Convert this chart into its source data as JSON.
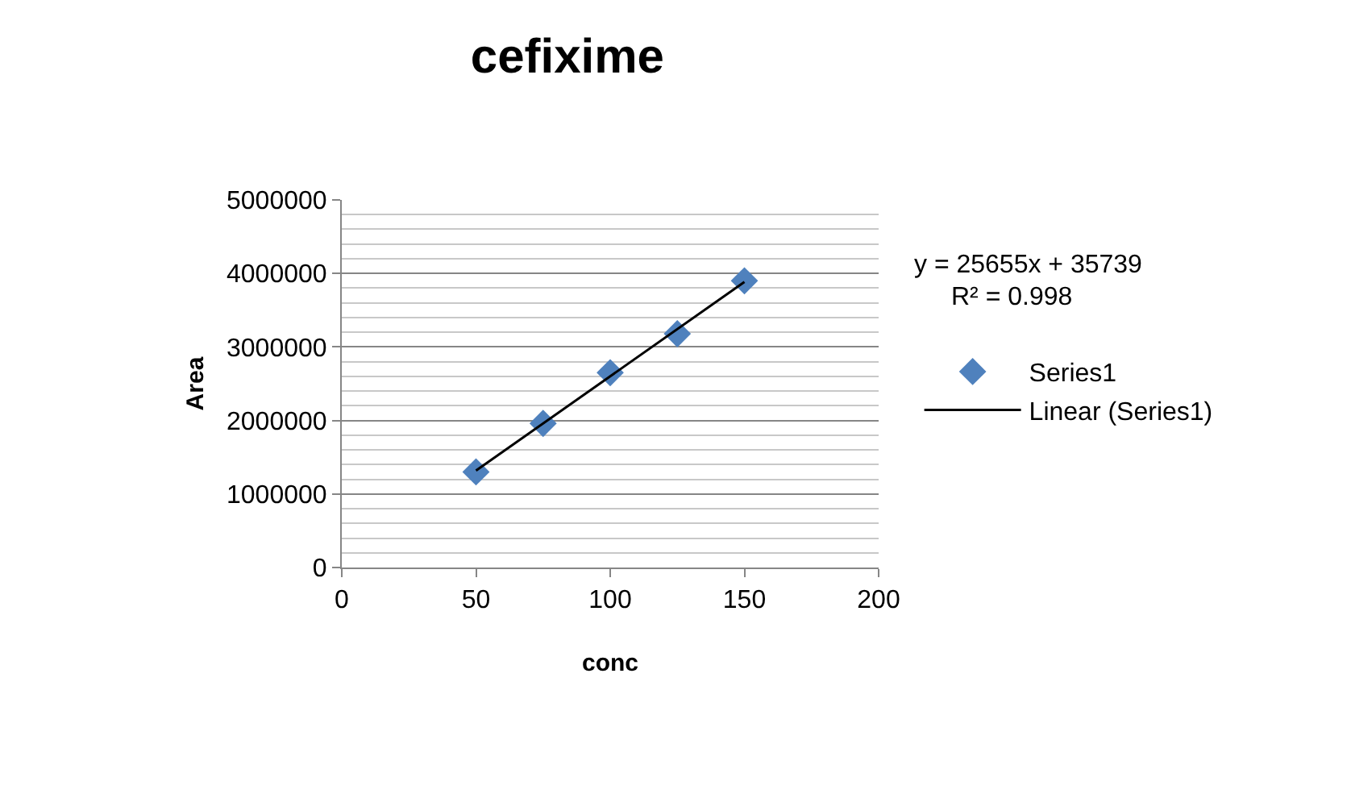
{
  "chart_data": {
    "type": "scatter",
    "title": "cefixime",
    "xlabel": "conc",
    "ylabel": "Area",
    "xlim": [
      0,
      200
    ],
    "xticks": [
      0,
      50,
      100,
      150,
      200
    ],
    "ylim": [
      0,
      5000000
    ],
    "yticks": [
      0,
      1000000,
      2000000,
      3000000,
      4000000,
      5000000
    ],
    "grid": "y",
    "legend": "right",
    "marker": "diamond",
    "series": [
      {
        "name": "Series1",
        "color": "#4f81bd",
        "x": [
          50,
          75,
          100,
          125,
          150
        ],
        "values": [
          1300000,
          1960000,
          2650000,
          3180000,
          3900000
        ]
      },
      {
        "name": "Linear (Series1)",
        "type": "line",
        "color": "#000000",
        "marker": "none",
        "x": [
          50,
          150
        ],
        "values": [
          1318000,
          3884000
        ]
      }
    ],
    "annotations": [
      "y = 25655x + 35739",
      "R² = 0.998"
    ]
  }
}
